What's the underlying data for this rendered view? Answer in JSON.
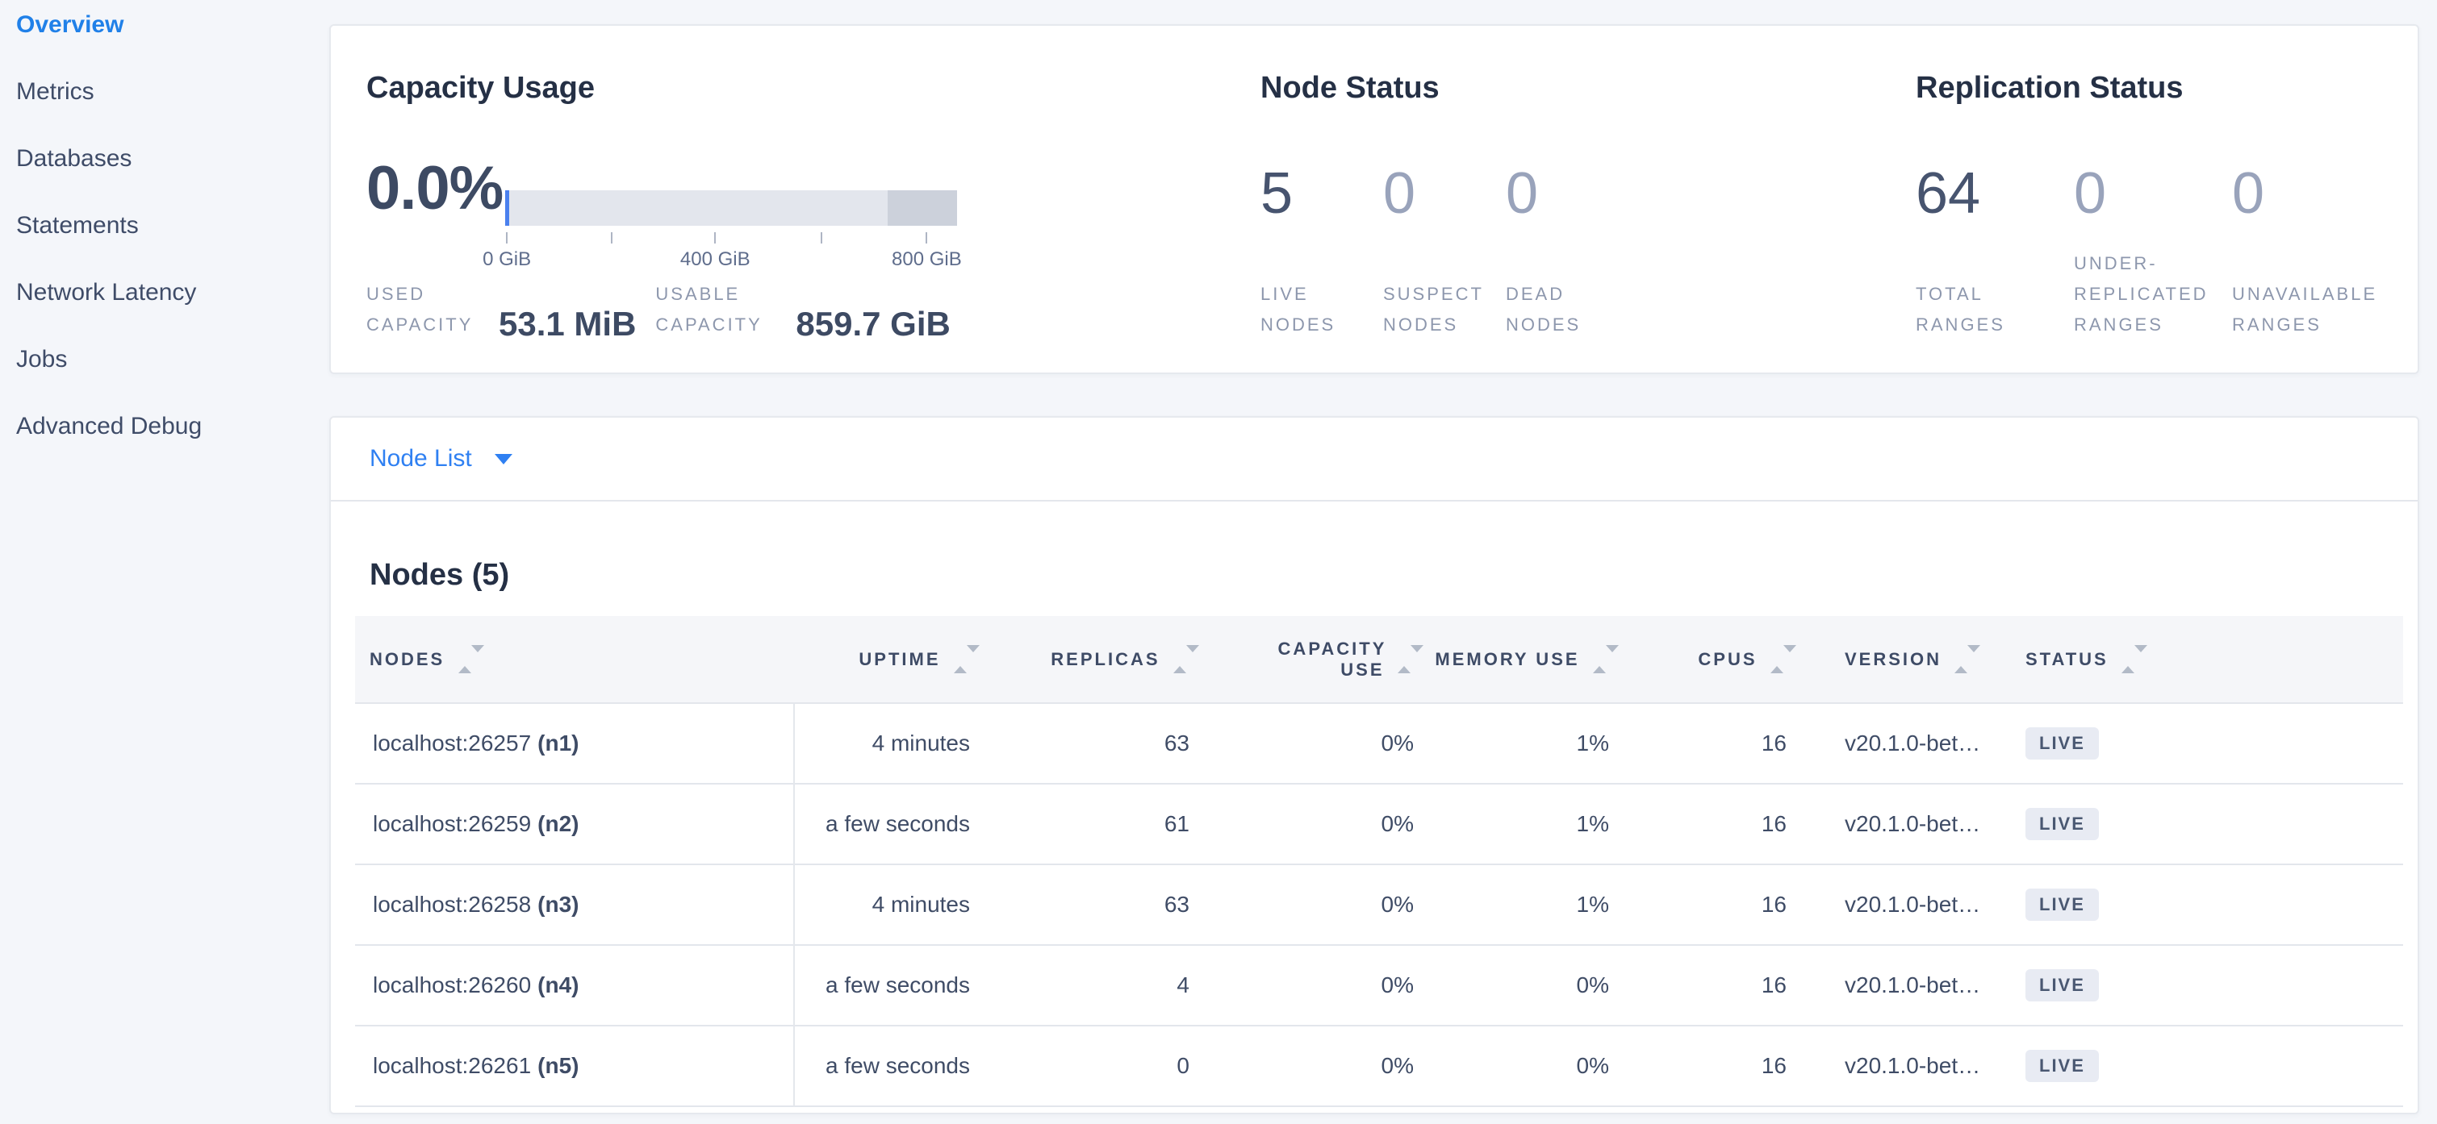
{
  "sidebar": {
    "items": [
      {
        "label": "Overview",
        "active": true
      },
      {
        "label": "Metrics"
      },
      {
        "label": "Databases"
      },
      {
        "label": "Statements"
      },
      {
        "label": "Network Latency"
      },
      {
        "label": "Jobs"
      },
      {
        "label": "Advanced Debug"
      }
    ]
  },
  "capacity": {
    "title": "Capacity Usage",
    "percent": "0.0%",
    "bar": {
      "used_pct": 0.9,
      "dark_start_pct": 84.7,
      "dark_width_pct": 15.3
    },
    "ticks": [
      {
        "pct": 0.2,
        "label": "0 GiB"
      },
      {
        "pct": 23.4,
        "label": ""
      },
      {
        "pct": 46.3,
        "label": "400 GiB"
      },
      {
        "pct": 69.8,
        "label": ""
      },
      {
        "pct": 93.1,
        "label": "800 GiB"
      }
    ],
    "used_label": "USED CAPACITY",
    "used_value": "53.1 MiB",
    "usable_label": "USABLE CAPACITY",
    "usable_value": "859.7 GiB"
  },
  "node_status": {
    "title": "Node Status",
    "stats": [
      {
        "value": "5",
        "label": "LIVE NODES",
        "primary": true
      },
      {
        "value": "0",
        "label": "SUSPECT NODES"
      },
      {
        "value": "0",
        "label": "DEAD NODES"
      }
    ]
  },
  "replication": {
    "title": "Replication Status",
    "stats": [
      {
        "value": "64",
        "label": "TOTAL RANGES",
        "primary": true
      },
      {
        "value": "0",
        "label": "UNDER-REPLICATED RANGES"
      },
      {
        "value": "0",
        "label": "UNAVAILABLE RANGES"
      }
    ]
  },
  "node_list": {
    "label": "Node List"
  },
  "nodes_table": {
    "title": "Nodes (5)",
    "columns": [
      "NODES",
      "UPTIME",
      "REPLICAS",
      "CAPACITY USE",
      "MEMORY USE",
      "CPUS",
      "VERSION",
      "STATUS"
    ],
    "rows": [
      {
        "address": "localhost:26257",
        "id": "(n1)",
        "uptime": "4 minutes",
        "replicas": "63",
        "capacity": "0%",
        "memory": "1%",
        "cpus": "16",
        "version": "v20.1.0-bet…",
        "status": "LIVE"
      },
      {
        "address": "localhost:26259",
        "id": "(n2)",
        "uptime": "a few seconds",
        "replicas": "61",
        "capacity": "0%",
        "memory": "1%",
        "cpus": "16",
        "version": "v20.1.0-bet…",
        "status": "LIVE"
      },
      {
        "address": "localhost:26258",
        "id": "(n3)",
        "uptime": "4 minutes",
        "replicas": "63",
        "capacity": "0%",
        "memory": "1%",
        "cpus": "16",
        "version": "v20.1.0-bet…",
        "status": "LIVE"
      },
      {
        "address": "localhost:26260",
        "id": "(n4)",
        "uptime": "a few seconds",
        "replicas": "4",
        "capacity": "0%",
        "memory": "0%",
        "cpus": "16",
        "version": "v20.1.0-bet…",
        "status": "LIVE"
      },
      {
        "address": "localhost:26261",
        "id": "(n5)",
        "uptime": "a few seconds",
        "replicas": "0",
        "capacity": "0%",
        "memory": "0%",
        "cpus": "16",
        "version": "v20.1.0-bet…",
        "status": "LIVE"
      }
    ]
  }
}
